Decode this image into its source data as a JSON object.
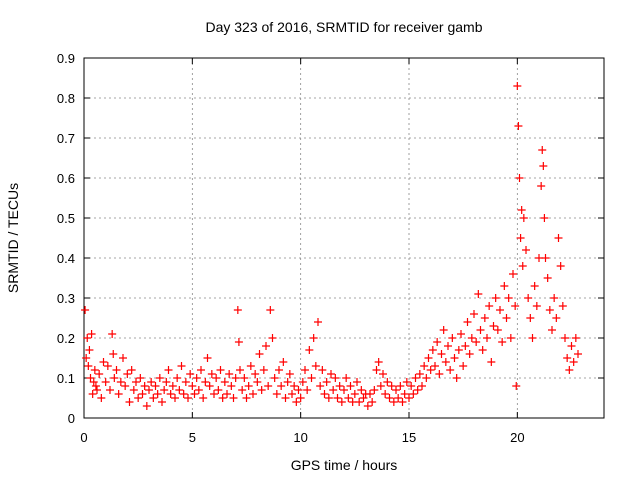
{
  "chart_data": {
    "type": "scatter",
    "title": "Day 323 of 2016, SRMTID for receiver gamb",
    "xlabel": "GPS time / hours",
    "ylabel": "SRMTID / TECUs",
    "xlim": [
      0,
      24
    ],
    "ylim": [
      0,
      0.9
    ],
    "x_ticks": [
      0,
      5,
      10,
      15,
      20
    ],
    "y_ticks": [
      0,
      0.1,
      0.2,
      0.3,
      0.4,
      0.5,
      0.6,
      0.7,
      0.8,
      0.9
    ],
    "y_tick_labels": [
      "0",
      "0.1",
      "0.2",
      "0.3",
      "0.4",
      "0.5",
      "0.6",
      "0.7",
      "0.8",
      "0.9"
    ],
    "x_tick_labels": [
      "0",
      "5",
      "10",
      "15",
      "20"
    ],
    "grid": true,
    "marker": "+",
    "marker_color": "#ff0000",
    "series": [
      {
        "name": "SRMTID",
        "points": [
          [
            0.05,
            0.27
          ],
          [
            0.1,
            0.15
          ],
          [
            0.15,
            0.2
          ],
          [
            0.2,
            0.13
          ],
          [
            0.25,
            0.17
          ],
          [
            0.3,
            0.1
          ],
          [
            0.35,
            0.21
          ],
          [
            0.4,
            0.06
          ],
          [
            0.45,
            0.09
          ],
          [
            0.5,
            0.12
          ],
          [
            0.55,
            0.08
          ],
          [
            0.6,
            0.07
          ],
          [
            0.7,
            0.11
          ],
          [
            0.8,
            0.05
          ],
          [
            0.9,
            0.14
          ],
          [
            1.0,
            0.09
          ],
          [
            1.1,
            0.13
          ],
          [
            1.2,
            0.07
          ],
          [
            1.3,
            0.21
          ],
          [
            1.35,
            0.16
          ],
          [
            1.4,
            0.1
          ],
          [
            1.5,
            0.12
          ],
          [
            1.6,
            0.06
          ],
          [
            1.7,
            0.09
          ],
          [
            1.8,
            0.15
          ],
          [
            1.9,
            0.08
          ],
          [
            2.0,
            0.11
          ],
          [
            2.1,
            0.04
          ],
          [
            2.2,
            0.12
          ],
          [
            2.3,
            0.07
          ],
          [
            2.4,
            0.09
          ],
          [
            2.5,
            0.05
          ],
          [
            2.6,
            0.1
          ],
          [
            2.7,
            0.06
          ],
          [
            2.8,
            0.08
          ],
          [
            2.9,
            0.03
          ],
          [
            3.0,
            0.07
          ],
          [
            3.1,
            0.09
          ],
          [
            3.2,
            0.05
          ],
          [
            3.3,
            0.08
          ],
          [
            3.4,
            0.06
          ],
          [
            3.5,
            0.1
          ],
          [
            3.6,
            0.04
          ],
          [
            3.7,
            0.07
          ],
          [
            3.8,
            0.09
          ],
          [
            3.9,
            0.12
          ],
          [
            4.0,
            0.06
          ],
          [
            4.1,
            0.08
          ],
          [
            4.2,
            0.05
          ],
          [
            4.3,
            0.1
          ],
          [
            4.4,
            0.07
          ],
          [
            4.5,
            0.13
          ],
          [
            4.6,
            0.06
          ],
          [
            4.7,
            0.09
          ],
          [
            4.8,
            0.05
          ],
          [
            4.9,
            0.11
          ],
          [
            5.0,
            0.08
          ],
          [
            5.1,
            0.06
          ],
          [
            5.2,
            0.1
          ],
          [
            5.3,
            0.07
          ],
          [
            5.4,
            0.12
          ],
          [
            5.5,
            0.05
          ],
          [
            5.6,
            0.09
          ],
          [
            5.7,
            0.15
          ],
          [
            5.8,
            0.08
          ],
          [
            5.9,
            0.11
          ],
          [
            6.0,
            0.06
          ],
          [
            6.1,
            0.1
          ],
          [
            6.2,
            0.07
          ],
          [
            6.3,
            0.12
          ],
          [
            6.4,
            0.05
          ],
          [
            6.5,
            0.09
          ],
          [
            6.6,
            0.06
          ],
          [
            6.7,
            0.11
          ],
          [
            6.8,
            0.08
          ],
          [
            6.9,
            0.05
          ],
          [
            7.0,
            0.1
          ],
          [
            7.1,
            0.27
          ],
          [
            7.15,
            0.19
          ],
          [
            7.2,
            0.12
          ],
          [
            7.3,
            0.07
          ],
          [
            7.4,
            0.1
          ],
          [
            7.5,
            0.05
          ],
          [
            7.6,
            0.08
          ],
          [
            7.7,
            0.13
          ],
          [
            7.8,
            0.06
          ],
          [
            7.9,
            0.11
          ],
          [
            8.0,
            0.09
          ],
          [
            8.1,
            0.16
          ],
          [
            8.2,
            0.07
          ],
          [
            8.3,
            0.12
          ],
          [
            8.4,
            0.18
          ],
          [
            8.5,
            0.08
          ],
          [
            8.6,
            0.27
          ],
          [
            8.7,
            0.2
          ],
          [
            8.8,
            0.1
          ],
          [
            8.9,
            0.06
          ],
          [
            9.0,
            0.12
          ],
          [
            9.1,
            0.08
          ],
          [
            9.2,
            0.14
          ],
          [
            9.3,
            0.05
          ],
          [
            9.4,
            0.09
          ],
          [
            9.5,
            0.11
          ],
          [
            9.6,
            0.06
          ],
          [
            9.7,
            0.08
          ],
          [
            9.8,
            0.04
          ],
          [
            9.9,
            0.07
          ],
          [
            10.0,
            0.05
          ],
          [
            10.1,
            0.09
          ],
          [
            10.2,
            0.12
          ],
          [
            10.3,
            0.07
          ],
          [
            10.4,
            0.17
          ],
          [
            10.5,
            0.1
          ],
          [
            10.6,
            0.2
          ],
          [
            10.7,
            0.13
          ],
          [
            10.8,
            0.24
          ],
          [
            10.9,
            0.08
          ],
          [
            11.0,
            0.12
          ],
          [
            11.1,
            0.06
          ],
          [
            11.2,
            0.09
          ],
          [
            11.3,
            0.05
          ],
          [
            11.4,
            0.11
          ],
          [
            11.5,
            0.07
          ],
          [
            11.6,
            0.1
          ],
          [
            11.7,
            0.05
          ],
          [
            11.8,
            0.08
          ],
          [
            11.9,
            0.04
          ],
          [
            12.0,
            0.07
          ],
          [
            12.1,
            0.1
          ],
          [
            12.2,
            0.05
          ],
          [
            12.3,
            0.08
          ],
          [
            12.4,
            0.04
          ],
          [
            12.5,
            0.06
          ],
          [
            12.6,
            0.09
          ],
          [
            12.7,
            0.04
          ],
          [
            12.8,
            0.07
          ],
          [
            12.9,
            0.05
          ],
          [
            13.0,
            0.06
          ],
          [
            13.1,
            0.03
          ],
          [
            13.2,
            0.06
          ],
          [
            13.3,
            0.04
          ],
          [
            13.4,
            0.07
          ],
          [
            13.5,
            0.12
          ],
          [
            13.6,
            0.14
          ],
          [
            13.7,
            0.08
          ],
          [
            13.8,
            0.11
          ],
          [
            13.9,
            0.06
          ],
          [
            14.0,
            0.09
          ],
          [
            14.1,
            0.05
          ],
          [
            14.2,
            0.08
          ],
          [
            14.3,
            0.04
          ],
          [
            14.4,
            0.07
          ],
          [
            14.5,
            0.05
          ],
          [
            14.6,
            0.08
          ],
          [
            14.7,
            0.04
          ],
          [
            14.8,
            0.06
          ],
          [
            14.9,
            0.09
          ],
          [
            15.0,
            0.05
          ],
          [
            15.1,
            0.08
          ],
          [
            15.2,
            0.06
          ],
          [
            15.3,
            0.1
          ],
          [
            15.4,
            0.07
          ],
          [
            15.5,
            0.11
          ],
          [
            15.6,
            0.08
          ],
          [
            15.7,
            0.13
          ],
          [
            15.8,
            0.1
          ],
          [
            15.9,
            0.15
          ],
          [
            16.0,
            0.12
          ],
          [
            16.1,
            0.17
          ],
          [
            16.2,
            0.13
          ],
          [
            16.3,
            0.19
          ],
          [
            16.4,
            0.11
          ],
          [
            16.5,
            0.16
          ],
          [
            16.6,
            0.22
          ],
          [
            16.7,
            0.14
          ],
          [
            16.8,
            0.18
          ],
          [
            16.9,
            0.12
          ],
          [
            17.0,
            0.2
          ],
          [
            17.1,
            0.15
          ],
          [
            17.2,
            0.1
          ],
          [
            17.3,
            0.17
          ],
          [
            17.4,
            0.21
          ],
          [
            17.5,
            0.13
          ],
          [
            17.6,
            0.18
          ],
          [
            17.7,
            0.24
          ],
          [
            17.8,
            0.16
          ],
          [
            17.9,
            0.2
          ],
          [
            18.0,
            0.26
          ],
          [
            18.1,
            0.19
          ],
          [
            18.2,
            0.31
          ],
          [
            18.3,
            0.22
          ],
          [
            18.4,
            0.17
          ],
          [
            18.5,
            0.25
          ],
          [
            18.6,
            0.2
          ],
          [
            18.7,
            0.28
          ],
          [
            18.8,
            0.14
          ],
          [
            18.9,
            0.23
          ],
          [
            19.0,
            0.3
          ],
          [
            19.1,
            0.22
          ],
          [
            19.2,
            0.27
          ],
          [
            19.3,
            0.19
          ],
          [
            19.4,
            0.33
          ],
          [
            19.5,
            0.25
          ],
          [
            19.6,
            0.3
          ],
          [
            19.7,
            0.2
          ],
          [
            19.8,
            0.36
          ],
          [
            19.9,
            0.28
          ],
          [
            19.95,
            0.08
          ],
          [
            20.0,
            0.83
          ],
          [
            20.05,
            0.73
          ],
          [
            20.1,
            0.6
          ],
          [
            20.15,
            0.45
          ],
          [
            20.2,
            0.52
          ],
          [
            20.25,
            0.38
          ],
          [
            20.3,
            0.5
          ],
          [
            20.4,
            0.42
          ],
          [
            20.5,
            0.3
          ],
          [
            20.6,
            0.25
          ],
          [
            20.7,
            0.2
          ],
          [
            20.8,
            0.33
          ],
          [
            20.9,
            0.28
          ],
          [
            21.0,
            0.4
          ],
          [
            21.1,
            0.58
          ],
          [
            21.15,
            0.67
          ],
          [
            21.2,
            0.63
          ],
          [
            21.25,
            0.5
          ],
          [
            21.3,
            0.4
          ],
          [
            21.4,
            0.35
          ],
          [
            21.5,
            0.27
          ],
          [
            21.6,
            0.22
          ],
          [
            21.7,
            0.3
          ],
          [
            21.8,
            0.25
          ],
          [
            21.9,
            0.45
          ],
          [
            22.0,
            0.38
          ],
          [
            22.1,
            0.28
          ],
          [
            22.2,
            0.2
          ],
          [
            22.3,
            0.15
          ],
          [
            22.4,
            0.12
          ],
          [
            22.5,
            0.18
          ],
          [
            22.6,
            0.14
          ],
          [
            22.7,
            0.2
          ],
          [
            22.8,
            0.16
          ]
        ]
      }
    ]
  }
}
